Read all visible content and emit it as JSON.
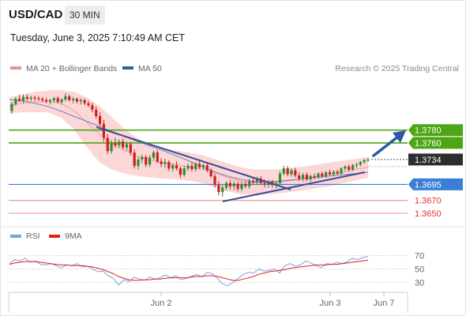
{
  "header": {
    "symbol": "USD/CAD",
    "interval": "30 MIN"
  },
  "timestamp": "Tuesday, June 3, 2025 7:10:49 AM CET",
  "legend": {
    "items": [
      {
        "label": "MA 20 + Bollinger Bands",
        "color": "#f08d8d"
      },
      {
        "label": "MA 50",
        "color": "#3d5a9e"
      }
    ],
    "credit": "Research © 2025 Trading Central"
  },
  "colors": {
    "candle_up": "#2e8b2e",
    "candle_down": "#cc1f1f",
    "band_fill": "#fbd7d7",
    "ma20": "#f0a0a0",
    "ma50": "#6e86b8",
    "trendline": "#3a4c9a",
    "arrow": "#2a5aa8",
    "resistance": "#4ca615",
    "pivot": "#3a7fd5",
    "support": "#ee9999",
    "last_price_box": "#2d2d2d",
    "rsi": "#7e9ee0",
    "rsi_ma": "#dd2222"
  },
  "chart_data": [
    {
      "type": "candlestick",
      "title": "USD/CAD",
      "x_ticks": [
        "Jun 2",
        "Jun 3",
        "Jun 7"
      ],
      "y_range": [
        1.3625,
        1.387
      ],
      "levels": [
        {
          "value": 1.378,
          "label": "1.3780",
          "kind": "resistance"
        },
        {
          "value": 1.376,
          "label": "1.3760",
          "kind": "resistance"
        },
        {
          "value": 1.3734,
          "label": "1.3734",
          "kind": "last_price"
        },
        {
          "value": 1.3695,
          "label": "1.3695",
          "kind": "pivot"
        },
        {
          "value": 1.367,
          "label": "1.3670",
          "kind": "support"
        },
        {
          "value": 1.365,
          "label": "1.3650",
          "kind": "support"
        }
      ],
      "candles": [
        [
          1.381,
          1.3824,
          1.3806,
          1.3821
        ],
        [
          1.3821,
          1.3832,
          1.3818,
          1.3829
        ],
        [
          1.3829,
          1.3835,
          1.3824,
          1.3826
        ],
        [
          1.3826,
          1.3836,
          1.3822,
          1.3832
        ],
        [
          1.3832,
          1.3836,
          1.3826,
          1.3829
        ],
        [
          1.3829,
          1.3834,
          1.3825,
          1.3831
        ],
        [
          1.3831,
          1.3834,
          1.3826,
          1.383
        ],
        [
          1.383,
          1.3833,
          1.3826,
          1.3829
        ],
        [
          1.3829,
          1.3832,
          1.3824,
          1.3827
        ],
        [
          1.3827,
          1.3831,
          1.3822,
          1.3825
        ],
        [
          1.3825,
          1.3829,
          1.382,
          1.3827
        ],
        [
          1.3827,
          1.3832,
          1.3823,
          1.383
        ],
        [
          1.383,
          1.3833,
          1.3822,
          1.3824
        ],
        [
          1.3824,
          1.383,
          1.382,
          1.3828
        ],
        [
          1.3828,
          1.3838,
          1.3825,
          1.3833
        ],
        [
          1.3833,
          1.3836,
          1.3825,
          1.3827
        ],
        [
          1.3827,
          1.3832,
          1.3822,
          1.3829
        ],
        [
          1.3829,
          1.3831,
          1.3822,
          1.3825
        ],
        [
          1.3825,
          1.383,
          1.382,
          1.3827
        ],
        [
          1.3827,
          1.3829,
          1.3819,
          1.3822
        ],
        [
          1.3822,
          1.3826,
          1.3816,
          1.3819
        ],
        [
          1.3819,
          1.3823,
          1.3808,
          1.3812
        ],
        [
          1.3812,
          1.3817,
          1.3798,
          1.3802
        ],
        [
          1.3802,
          1.3808,
          1.3785,
          1.379
        ],
        [
          1.379,
          1.3796,
          1.3762,
          1.3768
        ],
        [
          1.3768,
          1.3774,
          1.3742,
          1.3747
        ],
        [
          1.3747,
          1.3765,
          1.3743,
          1.376
        ],
        [
          1.376,
          1.3768,
          1.3752,
          1.3756
        ],
        [
          1.3756,
          1.3766,
          1.3752,
          1.3762
        ],
        [
          1.3762,
          1.3767,
          1.375,
          1.3753
        ],
        [
          1.3753,
          1.3762,
          1.3748,
          1.3758
        ],
        [
          1.3758,
          1.3762,
          1.374,
          1.3745
        ],
        [
          1.3745,
          1.375,
          1.372,
          1.3724
        ],
        [
          1.3724,
          1.3738,
          1.3718,
          1.3734
        ],
        [
          1.3734,
          1.3742,
          1.3728,
          1.3738
        ],
        [
          1.3738,
          1.3741,
          1.3722,
          1.3726
        ],
        [
          1.3726,
          1.3741,
          1.3722,
          1.3737
        ],
        [
          1.3737,
          1.3748,
          1.3733,
          1.3745
        ],
        [
          1.3745,
          1.3749,
          1.3728,
          1.3731
        ],
        [
          1.3731,
          1.3736,
          1.3722,
          1.3727
        ],
        [
          1.3727,
          1.3735,
          1.3721,
          1.373
        ],
        [
          1.373,
          1.3733,
          1.3716,
          1.372
        ],
        [
          1.372,
          1.3728,
          1.3715,
          1.3725
        ],
        [
          1.3725,
          1.3731,
          1.3717,
          1.372
        ],
        [
          1.372,
          1.3723,
          1.3705,
          1.371
        ],
        [
          1.371,
          1.3724,
          1.3707,
          1.372
        ],
        [
          1.372,
          1.3728,
          1.3716,
          1.3724
        ],
        [
          1.3724,
          1.3729,
          1.3715,
          1.3719
        ],
        [
          1.3719,
          1.373,
          1.3715,
          1.3727
        ],
        [
          1.3727,
          1.3731,
          1.3719,
          1.3722
        ],
        [
          1.3722,
          1.3728,
          1.3718,
          1.3725
        ],
        [
          1.3725,
          1.3728,
          1.3714,
          1.3717
        ],
        [
          1.3717,
          1.3721,
          1.3705,
          1.3708
        ],
        [
          1.3708,
          1.3712,
          1.369,
          1.3694
        ],
        [
          1.3694,
          1.37,
          1.3678,
          1.3683
        ],
        [
          1.3683,
          1.3694,
          1.3676,
          1.369
        ],
        [
          1.369,
          1.37,
          1.3686,
          1.3697
        ],
        [
          1.3697,
          1.3702,
          1.3687,
          1.3692
        ],
        [
          1.3692,
          1.37,
          1.3686,
          1.3696
        ],
        [
          1.3696,
          1.3699,
          1.3684,
          1.3688
        ],
        [
          1.3688,
          1.3699,
          1.3684,
          1.3695
        ],
        [
          1.3695,
          1.37,
          1.3689,
          1.3692
        ],
        [
          1.3692,
          1.3704,
          1.3688,
          1.37
        ],
        [
          1.37,
          1.3705,
          1.3694,
          1.3698
        ],
        [
          1.3698,
          1.3707,
          1.3694,
          1.3704
        ],
        [
          1.3704,
          1.3708,
          1.3694,
          1.3697
        ],
        [
          1.3697,
          1.3703,
          1.369,
          1.3695
        ],
        [
          1.3695,
          1.3702,
          1.369,
          1.3699
        ],
        [
          1.3699,
          1.3702,
          1.369,
          1.3694
        ],
        [
          1.3694,
          1.37,
          1.3689,
          1.3697
        ],
        [
          1.3697,
          1.3716,
          1.3695,
          1.3712
        ],
        [
          1.3712,
          1.3724,
          1.3709,
          1.372
        ],
        [
          1.372,
          1.3724,
          1.3708,
          1.3711
        ],
        [
          1.3711,
          1.372,
          1.3707,
          1.3717
        ],
        [
          1.3717,
          1.3721,
          1.3706,
          1.3709
        ],
        [
          1.3709,
          1.3714,
          1.37,
          1.3704
        ],
        [
          1.3704,
          1.3713,
          1.3699,
          1.371
        ],
        [
          1.371,
          1.3714,
          1.37,
          1.3703
        ],
        [
          1.3703,
          1.3711,
          1.3699,
          1.3708
        ],
        [
          1.3708,
          1.3712,
          1.3703,
          1.3706
        ],
        [
          1.3706,
          1.3714,
          1.3703,
          1.3712
        ],
        [
          1.3712,
          1.3715,
          1.3705,
          1.3708
        ],
        [
          1.3708,
          1.3716,
          1.3705,
          1.3714
        ],
        [
          1.3714,
          1.3718,
          1.3709,
          1.3711
        ],
        [
          1.3711,
          1.3717,
          1.3708,
          1.3715
        ],
        [
          1.3715,
          1.3718,
          1.371,
          1.3712
        ],
        [
          1.3712,
          1.3722,
          1.3709,
          1.372
        ],
        [
          1.372,
          1.3725,
          1.3716,
          1.3723
        ],
        [
          1.3723,
          1.3726,
          1.3715,
          1.3718
        ],
        [
          1.3718,
          1.3727,
          1.3716,
          1.3725
        ],
        [
          1.3725,
          1.3729,
          1.372,
          1.3726
        ],
        [
          1.3726,
          1.3732,
          1.3723,
          1.373
        ],
        [
          1.373,
          1.3735,
          1.3727,
          1.3733
        ],
        [
          1.3733,
          1.3737,
          1.373,
          1.3734
        ]
      ],
      "ma20": [
        1.3819,
        1.3822,
        1.3824,
        1.3825,
        1.3822,
        1.3811,
        1.3793,
        1.3774,
        1.3759,
        1.3748,
        1.3739,
        1.3733,
        1.3729,
        1.3726,
        1.3723,
        1.3719,
        1.3714,
        1.3706,
        1.37,
        1.3698,
        1.3698,
        1.3699,
        1.3701,
        1.3704,
        1.3707,
        1.371,
        1.3714,
        1.3718,
        1.3722
      ],
      "bb_upper": [
        1.3832,
        1.3836,
        1.384,
        1.3842,
        1.3843,
        1.384,
        1.3832,
        1.3818,
        1.38,
        1.3782,
        1.3767,
        1.3757,
        1.3752,
        1.3748,
        1.3745,
        1.3741,
        1.3735,
        1.3728,
        1.3722,
        1.3719,
        1.3718,
        1.3719,
        1.3721,
        1.3723,
        1.3726,
        1.3729,
        1.3732,
        1.3735,
        1.3738
      ],
      "bb_lower": [
        1.3806,
        1.3808,
        1.3808,
        1.3808,
        1.38,
        1.3782,
        1.3754,
        1.373,
        1.3718,
        1.3712,
        1.3708,
        1.3706,
        1.3704,
        1.3703,
        1.3701,
        1.3697,
        1.3691,
        1.3684,
        1.368,
        1.3678,
        1.3679,
        1.3681,
        1.3683,
        1.3686,
        1.3689,
        1.3692,
        1.3697,
        1.3701,
        1.3706
      ],
      "ma50": [
        1.3828,
        1.3826,
        1.3822,
        1.3817,
        1.381,
        1.3802,
        1.3794,
        1.3786,
        1.3778,
        1.377,
        1.3762,
        1.3755,
        1.3748,
        1.374,
        1.3732,
        1.3723,
        1.3715,
        1.3708,
        1.3703,
        1.37,
        1.3699,
        1.37,
        1.3702,
        1.3704,
        1.3706,
        1.3708,
        1.371,
        1.3712,
        1.3714
      ]
    },
    {
      "type": "line",
      "title": "RSI",
      "y_ticks": [
        70,
        50,
        30
      ],
      "ylim": [
        20,
        80
      ],
      "series": [
        {
          "name": "RSI",
          "values": [
            58,
            64,
            62,
            66,
            60,
            62,
            57,
            56,
            58,
            55,
            52,
            56,
            55,
            58,
            53,
            54,
            50,
            46,
            47,
            40,
            36,
            26,
            34,
            31,
            38,
            35,
            33,
            38,
            35,
            37,
            41,
            37,
            40,
            34,
            36,
            39,
            42,
            38,
            45,
            43,
            36,
            28,
            25,
            30,
            36,
            42,
            45,
            44,
            50,
            47,
            48,
            50,
            44,
            55,
            58,
            54,
            56,
            62,
            59,
            55,
            52,
            58,
            57,
            60,
            58,
            61,
            66,
            64,
            67,
            69
          ]
        },
        {
          "name": "9MA",
          "values": [
            57,
            59,
            60,
            61,
            61,
            61,
            60,
            59,
            58,
            57,
            56,
            56,
            55,
            55,
            55,
            54,
            53,
            51,
            49,
            46,
            43,
            39,
            36,
            34,
            33,
            33,
            34,
            34,
            35,
            35,
            36,
            37,
            37,
            37,
            37,
            38,
            39,
            39,
            40,
            40,
            39,
            37,
            35,
            33,
            33,
            35,
            37,
            39,
            42,
            44,
            46,
            47,
            48,
            49,
            51,
            52,
            53,
            54,
            55,
            56,
            56,
            56,
            57,
            57,
            58,
            59,
            60,
            61,
            62,
            63
          ]
        }
      ]
    }
  ]
}
